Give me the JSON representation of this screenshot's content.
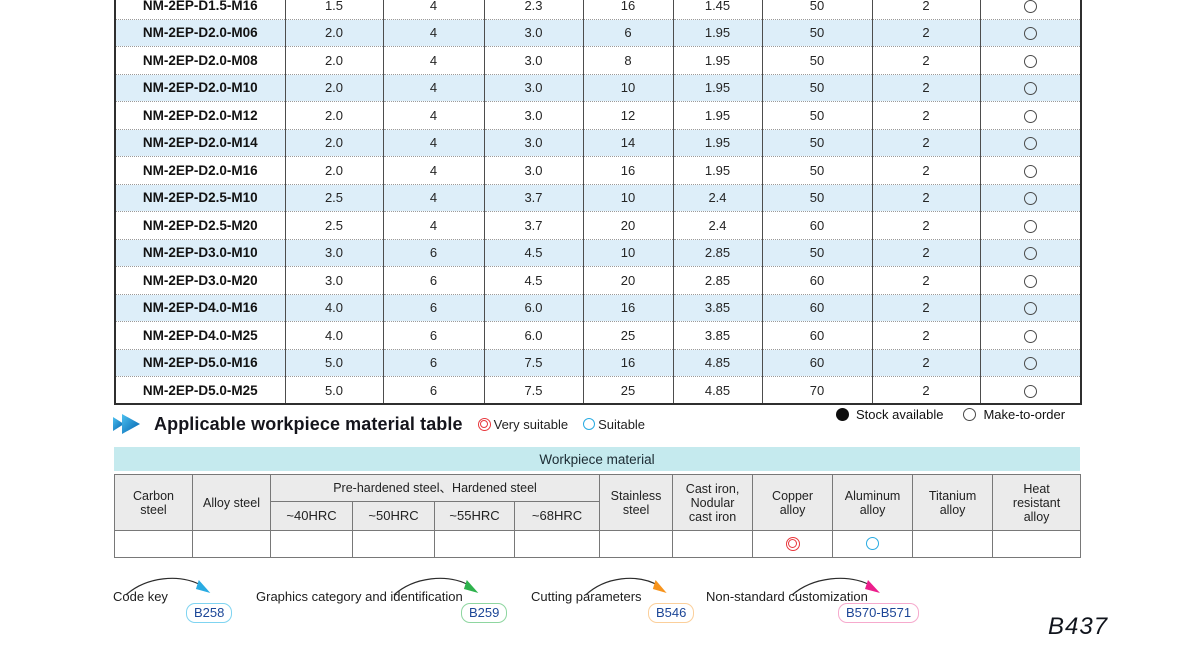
{
  "spec_table": {
    "rows": [
      {
        "model": "NM-2EP-D1.5-M16",
        "cells": [
          "1.5",
          "4",
          "2.3",
          "16",
          "1.45",
          "50",
          "2"
        ],
        "availability": "make_to_order"
      },
      {
        "model": "NM-2EP-D2.0-M06",
        "cells": [
          "2.0",
          "4",
          "3.0",
          "6",
          "1.95",
          "50",
          "2"
        ],
        "availability": "make_to_order"
      },
      {
        "model": "NM-2EP-D2.0-M08",
        "cells": [
          "2.0",
          "4",
          "3.0",
          "8",
          "1.95",
          "50",
          "2"
        ],
        "availability": "make_to_order"
      },
      {
        "model": "NM-2EP-D2.0-M10",
        "cells": [
          "2.0",
          "4",
          "3.0",
          "10",
          "1.95",
          "50",
          "2"
        ],
        "availability": "make_to_order"
      },
      {
        "model": "NM-2EP-D2.0-M12",
        "cells": [
          "2.0",
          "4",
          "3.0",
          "12",
          "1.95",
          "50",
          "2"
        ],
        "availability": "make_to_order"
      },
      {
        "model": "NM-2EP-D2.0-M14",
        "cells": [
          "2.0",
          "4",
          "3.0",
          "14",
          "1.95",
          "50",
          "2"
        ],
        "availability": "make_to_order"
      },
      {
        "model": "NM-2EP-D2.0-M16",
        "cells": [
          "2.0",
          "4",
          "3.0",
          "16",
          "1.95",
          "50",
          "2"
        ],
        "availability": "make_to_order"
      },
      {
        "model": "NM-2EP-D2.5-M10",
        "cells": [
          "2.5",
          "4",
          "3.7",
          "10",
          "2.4",
          "50",
          "2"
        ],
        "availability": "make_to_order"
      },
      {
        "model": "NM-2EP-D2.5-M20",
        "cells": [
          "2.5",
          "4",
          "3.7",
          "20",
          "2.4",
          "60",
          "2"
        ],
        "availability": "make_to_order"
      },
      {
        "model": "NM-2EP-D3.0-M10",
        "cells": [
          "3.0",
          "6",
          "4.5",
          "10",
          "2.85",
          "50",
          "2"
        ],
        "availability": "make_to_order"
      },
      {
        "model": "NM-2EP-D3.0-M20",
        "cells": [
          "3.0",
          "6",
          "4.5",
          "20",
          "2.85",
          "60",
          "2"
        ],
        "availability": "make_to_order"
      },
      {
        "model": "NM-2EP-D4.0-M16",
        "cells": [
          "4.0",
          "6",
          "6.0",
          "16",
          "3.85",
          "60",
          "2"
        ],
        "availability": "make_to_order"
      },
      {
        "model": "NM-2EP-D4.0-M25",
        "cells": [
          "4.0",
          "6",
          "6.0",
          "25",
          "3.85",
          "60",
          "2"
        ],
        "availability": "make_to_order"
      },
      {
        "model": "NM-2EP-D5.0-M16",
        "cells": [
          "5.0",
          "6",
          "7.5",
          "16",
          "4.85",
          "60",
          "2"
        ],
        "availability": "make_to_order"
      },
      {
        "model": "NM-2EP-D5.0-M25",
        "cells": [
          "5.0",
          "6",
          "7.5",
          "25",
          "4.85",
          "70",
          "2"
        ],
        "availability": "make_to_order"
      }
    ]
  },
  "stock_legend": {
    "available": "Stock available",
    "make_to_order": "Make-to-order"
  },
  "section": {
    "title": "Applicable workpiece material table",
    "very_suitable": "Very suitable",
    "suitable": "Suitable"
  },
  "material_table": {
    "title": "Workpiece material",
    "columns": [
      {
        "lines": [
          "Carbon",
          "steel"
        ]
      },
      {
        "lines": [
          "Alloy steel"
        ]
      },
      {
        "label": "Pre-hardened steel、Hardened steel",
        "subs": [
          "~40HRC",
          "~50HRC",
          "~55HRC",
          "~68HRC"
        ]
      },
      {
        "lines": [
          "Stainless",
          "steel"
        ]
      },
      {
        "lines": [
          "Cast iron,",
          "Nodular",
          "cast iron"
        ]
      },
      {
        "lines": [
          "Copper",
          "alloy"
        ]
      },
      {
        "lines": [
          "Aluminum",
          "alloy"
        ]
      },
      {
        "lines": [
          "Titanium",
          "alloy"
        ]
      },
      {
        "lines": [
          "Heat",
          "resistant",
          "alloy"
        ]
      }
    ],
    "leaf_ratings": [
      "",
      "",
      "",
      "",
      "",
      "",
      "",
      "",
      "very_suitable",
      "suitable",
      "",
      ""
    ]
  },
  "links": [
    {
      "label": "Code key",
      "page": "B258",
      "accent": "#29abe2",
      "border": "#7fd4f1"
    },
    {
      "label": "Graphics category and identification",
      "page": "B259",
      "accent": "#2eb24d",
      "border": "#8ed6a0"
    },
    {
      "label": "Cutting parameters",
      "page": "B546",
      "accent": "#f7941d",
      "border": "#fbcf9b"
    },
    {
      "label": "Non-standard customization",
      "page": "B570-B571",
      "accent": "#ec1e8c",
      "border": "#f6aacd"
    }
  ],
  "page_number": "B437",
  "colors": {
    "alt_row": "#ddeef9",
    "material_title_bg": "#c5eaee",
    "header_cell_bg": "#ebebeb",
    "very_suitable": "#e8383d",
    "suitable": "#29abe2",
    "badge_text": "#1b4596"
  }
}
